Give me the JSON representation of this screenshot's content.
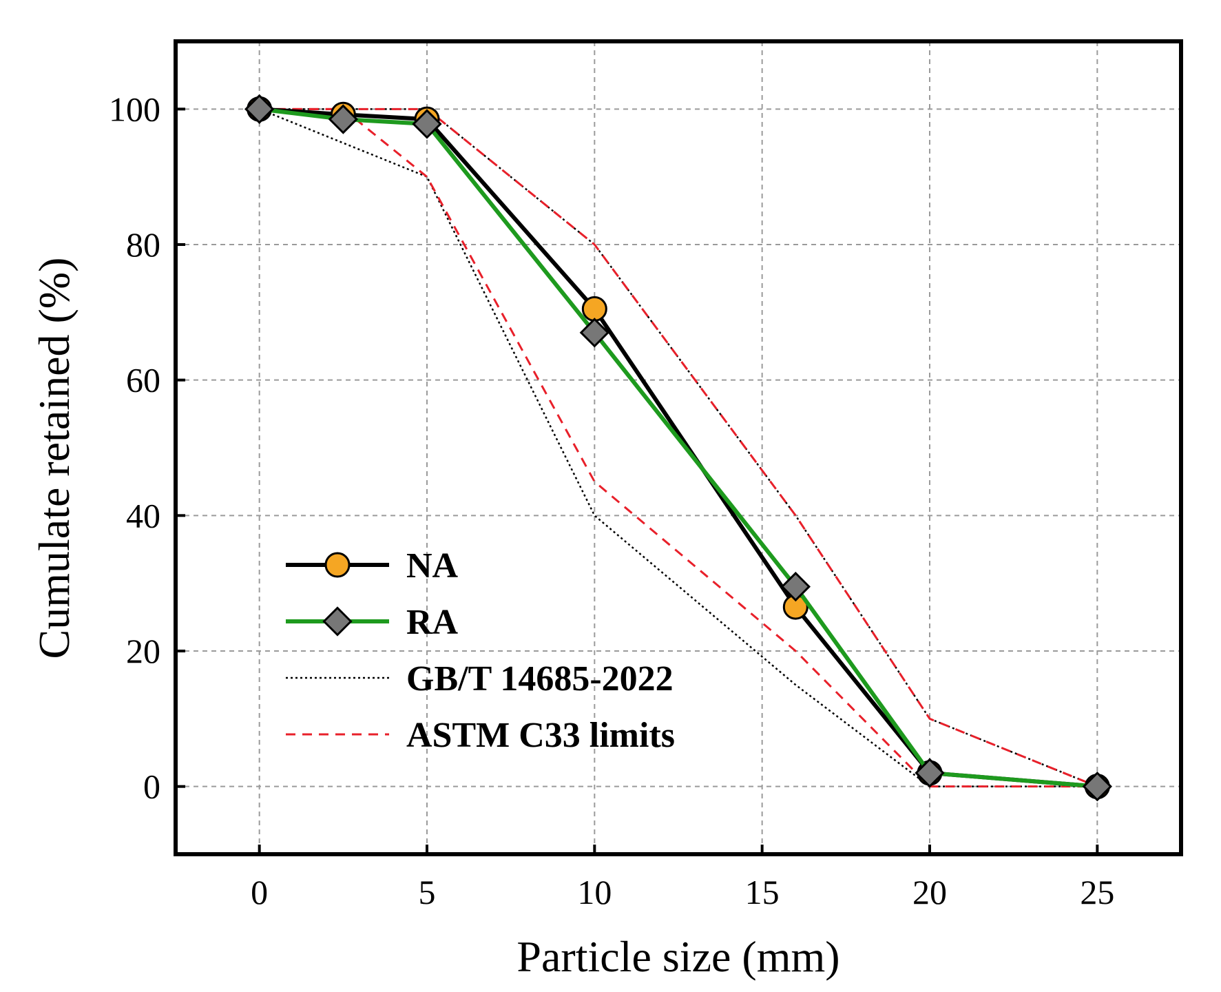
{
  "chart_data": {
    "type": "line",
    "title": "",
    "xlabel": "Particle size (mm)",
    "ylabel": "Cumulate retained (%)",
    "xlim": [
      -2.5,
      27.5
    ],
    "ylim": [
      -10,
      110
    ],
    "xticks": [
      0,
      5,
      10,
      15,
      20,
      25
    ],
    "yticks": [
      0,
      20,
      40,
      60,
      80,
      100
    ],
    "grid": true,
    "legend_position": "lower-left",
    "series": [
      {
        "name": "NA",
        "style": "solid",
        "color": "#000000",
        "marker": "circle",
        "marker_color": "#F5A623",
        "x": [
          0,
          2.5,
          5,
          10,
          16,
          20,
          25
        ],
        "y": [
          100,
          99.2,
          98.5,
          70.5,
          26.5,
          2,
          0
        ]
      },
      {
        "name": "RA",
        "style": "solid",
        "color": "#1E9A1E",
        "marker": "diamond",
        "marker_color": "#777777",
        "x": [
          0,
          2.5,
          5,
          10,
          16,
          20,
          25
        ],
        "y": [
          100,
          98.5,
          97.8,
          67,
          29.5,
          2,
          0
        ]
      },
      {
        "name": "GB/T 14685-2022",
        "style": "dotted",
        "color": "#000000",
        "bounds": [
          {
            "x": [
              0,
              2.5,
              5,
              10,
              16,
              20,
              25
            ],
            "y": [
              100,
              95,
              90,
              40,
              15,
              0,
              0
            ]
          },
          {
            "x": [
              0,
              2.5,
              5,
              10,
              16,
              20,
              25
            ],
            "y": [
              100,
              100,
              100,
              80,
              40,
              10,
              0
            ]
          }
        ]
      },
      {
        "name": "ASTM C33 limits",
        "style": "dashed",
        "color": "#E8202A",
        "bounds": [
          {
            "x": [
              0,
              2.5,
              5,
              10,
              16,
              20,
              25
            ],
            "y": [
              100,
              100,
              90,
              45,
              20,
              0,
              0
            ]
          },
          {
            "x": [
              0,
              2.5,
              5,
              10,
              16,
              20,
              25
            ],
            "y": [
              100,
              100,
              100,
              80,
              40,
              10,
              0
            ]
          }
        ]
      }
    ]
  }
}
